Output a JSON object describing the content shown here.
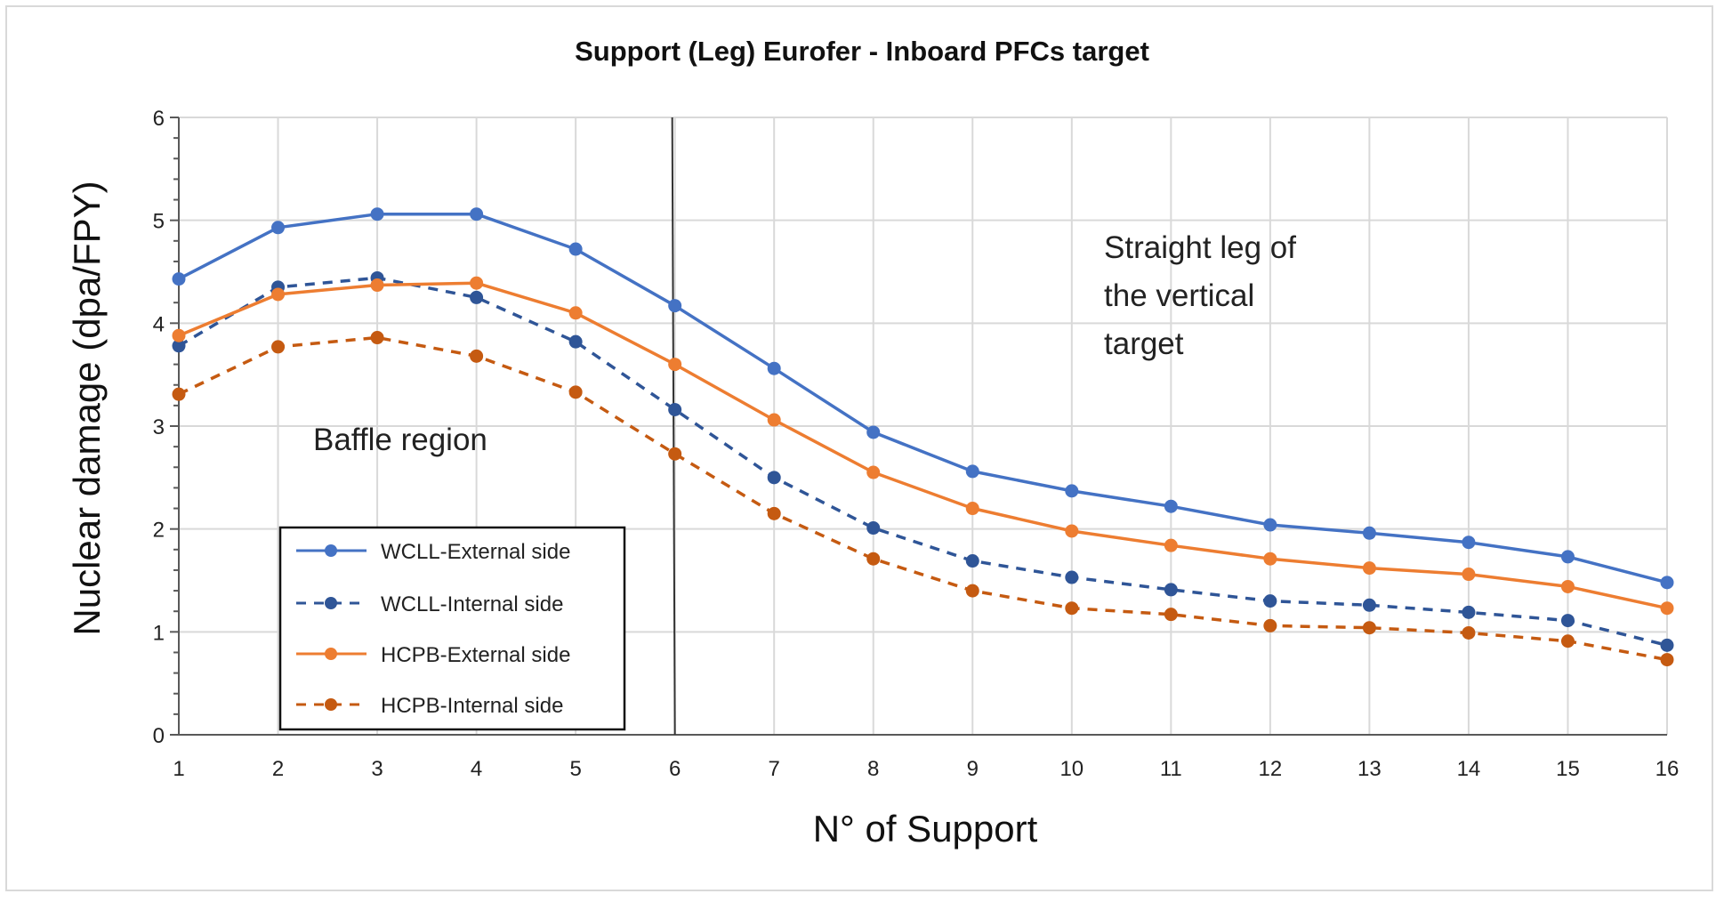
{
  "chart_data": {
    "type": "line",
    "title": "Support (Leg) Eurofer - Inboard PFCs target",
    "xlabel": "N° of Support",
    "ylabel": "Nuclear damage (dpa/FPY)",
    "xlim": [
      1,
      16
    ],
    "ylim": [
      0,
      6
    ],
    "x_ticks": [
      "1",
      "2",
      "3",
      "4",
      "5",
      "6",
      "7",
      "8",
      "9",
      "10",
      "11",
      "12",
      "13",
      "14",
      "15",
      "16"
    ],
    "y_ticks": [
      "0",
      "1",
      "2",
      "3",
      "4",
      "5",
      "6"
    ],
    "grid": true,
    "legend_position": "lower-left",
    "vertical_marker_x": 6,
    "annotations": [
      {
        "text": "Baffle region",
        "region": "left"
      },
      {
        "text_lines": [
          "Straight leg of",
          "the vertical",
          "target"
        ],
        "region": "upper-right"
      }
    ],
    "series": [
      {
        "name": "WCLL-External side",
        "color": "#4472C4",
        "style": "solid",
        "values": [
          4.43,
          4.93,
          5.06,
          5.06,
          4.72,
          4.17,
          3.56,
          2.94,
          2.56,
          2.37,
          2.22,
          2.04,
          1.96,
          1.87,
          1.73,
          1.48
        ]
      },
      {
        "name": "WCLL-Internal side",
        "color": "#2F5597",
        "style": "dashed",
        "values": [
          3.78,
          4.35,
          4.44,
          4.25,
          3.82,
          3.16,
          2.5,
          2.01,
          1.69,
          1.53,
          1.41,
          1.3,
          1.26,
          1.19,
          1.11,
          0.87
        ]
      },
      {
        "name": "HCPB-External side",
        "color": "#ED7D31",
        "style": "solid",
        "values": [
          3.88,
          4.28,
          4.37,
          4.39,
          4.1,
          3.6,
          3.06,
          2.55,
          2.2,
          1.98,
          1.84,
          1.71,
          1.62,
          1.56,
          1.44,
          1.23
        ]
      },
      {
        "name": "HCPB-Internal side",
        "color": "#C55A11",
        "style": "dashed",
        "values": [
          3.31,
          3.77,
          3.86,
          3.68,
          3.33,
          2.73,
          2.15,
          1.71,
          1.4,
          1.23,
          1.17,
          1.06,
          1.04,
          0.99,
          0.91,
          0.73
        ]
      }
    ]
  }
}
